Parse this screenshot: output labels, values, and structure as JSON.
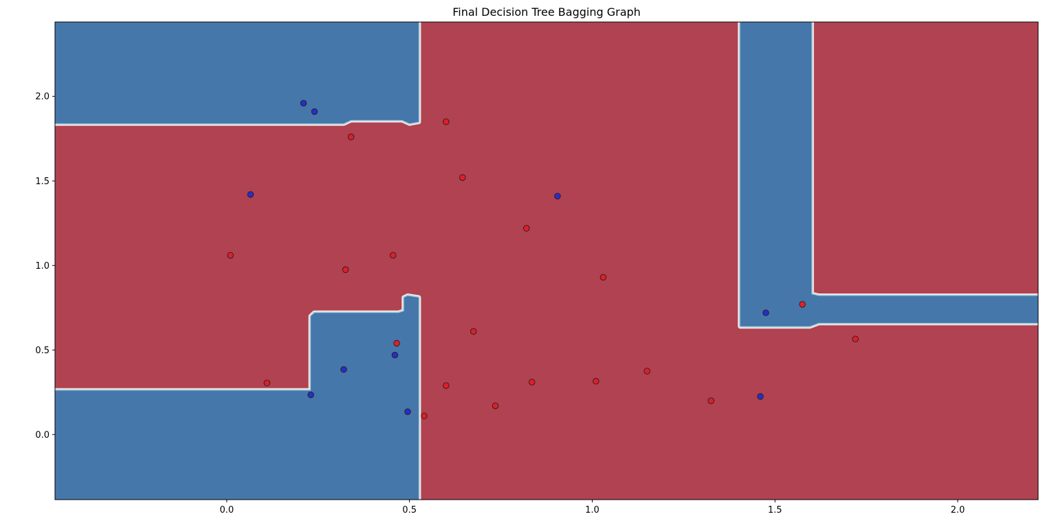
{
  "chart_data": {
    "type": "scatter",
    "title": "Final Decision Tree Bagging Graph",
    "xlabel": "",
    "ylabel": "",
    "xlim": [
      -0.47,
      2.22
    ],
    "ylim": [
      -0.385,
      2.44
    ],
    "xticks": [
      0.0,
      0.5,
      1.0,
      1.5,
      2.0
    ],
    "xtick_labels": [
      "0.0",
      "0.5",
      "1.0",
      "1.5",
      "2.0"
    ],
    "yticks": [
      0.0,
      0.5,
      1.0,
      1.5,
      2.0
    ],
    "ytick_labels": [
      "0.0",
      "0.5",
      "1.0",
      "1.5",
      "2.0"
    ],
    "grid": false,
    "colors": {
      "region_blue": "#4677aa",
      "region_red": "#b04252",
      "point_blue": "#2330c8",
      "point_red": "#dc2028",
      "boundary_light": "#f2e4dc",
      "boundary_cyan": "#9fd0e4"
    },
    "decision_regions": {
      "background": "red",
      "blue": [
        [
          [
            -0.47,
            1.84
          ],
          [
            0.32,
            1.84
          ],
          [
            0.34,
            1.86
          ],
          [
            0.48,
            1.86
          ],
          [
            0.5,
            1.84
          ],
          [
            0.525,
            1.85
          ],
          [
            0.525,
            2.44
          ],
          [
            -0.47,
            2.44
          ]
        ],
        [
          [
            -0.47,
            -0.385
          ],
          [
            0.525,
            -0.385
          ],
          [
            0.525,
            0.81
          ],
          [
            0.495,
            0.82
          ],
          [
            0.485,
            0.81
          ],
          [
            0.485,
            0.73
          ],
          [
            0.47,
            0.72
          ],
          [
            0.24,
            0.72
          ],
          [
            0.23,
            0.7
          ],
          [
            0.23,
            0.26
          ],
          [
            -0.47,
            0.26
          ]
        ],
        [
          [
            1.405,
            2.44
          ],
          [
            1.6,
            2.44
          ],
          [
            1.6,
            0.83
          ],
          [
            1.62,
            0.82
          ],
          [
            2.22,
            0.82
          ],
          [
            2.22,
            0.66
          ],
          [
            1.62,
            0.66
          ],
          [
            1.595,
            0.64
          ],
          [
            1.405,
            0.64
          ]
        ]
      ]
    },
    "series": [
      {
        "class": "blue",
        "x": [
          0.21,
          0.24,
          0.065,
          0.905,
          0.32,
          0.46,
          0.23,
          0.495,
          1.475,
          1.46
        ],
        "y": [
          1.96,
          1.91,
          1.42,
          1.41,
          0.385,
          0.47,
          0.235,
          0.135,
          0.72,
          0.225
        ]
      },
      {
        "class": "red",
        "x": [
          0.6,
          0.34,
          0.645,
          0.82,
          0.01,
          0.325,
          0.455,
          1.03,
          0.465,
          0.675,
          0.11,
          0.6,
          0.54,
          0.735,
          0.835,
          1.01,
          1.15,
          1.325,
          1.575,
          1.72
        ],
        "y": [
          1.85,
          1.76,
          1.52,
          1.22,
          1.06,
          0.975,
          1.06,
          0.93,
          0.54,
          0.61,
          0.305,
          0.29,
          0.11,
          0.17,
          0.31,
          0.315,
          0.375,
          0.2,
          0.77,
          0.565
        ]
      }
    ]
  }
}
